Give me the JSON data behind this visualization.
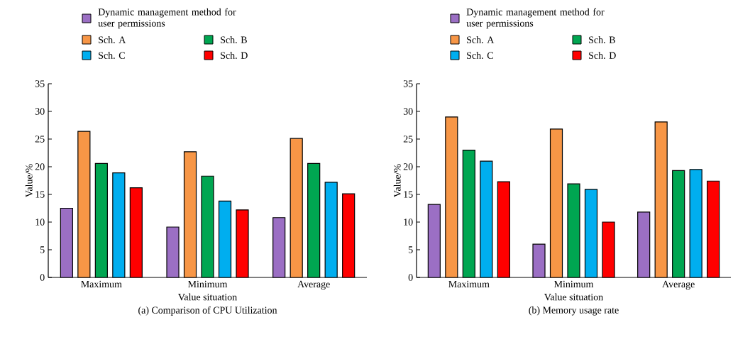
{
  "chart_data": [
    {
      "type": "bar",
      "title": "(a) Comparison of CPU Utilization",
      "xlabel": "Value situation",
      "ylabel": "Value/%",
      "categories": [
        "Maximum",
        "Minimum",
        "Average"
      ],
      "series": [
        {
          "name": "Dynamic management method for user permissions",
          "color": "#9b6fc4",
          "values": [
            12.5,
            9.1,
            10.8
          ]
        },
        {
          "name": "Sch. A",
          "color": "#f79646",
          "values": [
            26.4,
            22.7,
            25.1
          ]
        },
        {
          "name": "Sch. B",
          "color": "#00a651",
          "values": [
            20.6,
            18.3,
            20.6
          ]
        },
        {
          "name": "Sch. C",
          "color": "#00aeef",
          "values": [
            18.9,
            13.8,
            17.2
          ]
        },
        {
          "name": "Sch. D",
          "color": "#ff0000",
          "values": [
            16.2,
            12.2,
            15.1
          ]
        }
      ],
      "ylim": [
        0,
        35
      ],
      "yticks": [
        0,
        5,
        10,
        15,
        20,
        25,
        30,
        35
      ],
      "legend": "top",
      "grid": false
    },
    {
      "type": "bar",
      "title": "(b) Memory usage rate",
      "xlabel": "Value situation",
      "ylabel": "Value/%",
      "categories": [
        "Maximum",
        "Minimum",
        "Average"
      ],
      "series": [
        {
          "name": "Dynamic management method for user permissions",
          "color": "#9b6fc4",
          "values": [
            13.2,
            6.0,
            11.8
          ]
        },
        {
          "name": "Sch. A",
          "color": "#f79646",
          "values": [
            29.0,
            26.8,
            28.1
          ]
        },
        {
          "name": "Sch. B",
          "color": "#00a651",
          "values": [
            23.0,
            16.9,
            19.3
          ]
        },
        {
          "name": "Sch. C",
          "color": "#00aeef",
          "values": [
            21.0,
            15.9,
            19.5
          ]
        },
        {
          "name": "Sch. D",
          "color": "#ff0000",
          "values": [
            17.3,
            10.0,
            17.4
          ]
        }
      ],
      "ylim": [
        0,
        35
      ],
      "yticks": [
        0,
        5,
        10,
        15,
        20,
        25,
        30,
        35
      ],
      "legend": "top",
      "grid": false
    }
  ]
}
